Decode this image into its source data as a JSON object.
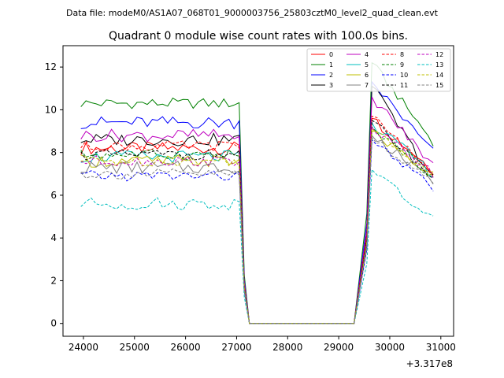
{
  "figure": {
    "suptitle": "Data file: modeM0/AS1A07_068T01_9000003756_25803cztM0_level2_quad_clean.evt",
    "title": "Quadrant 0 module wise count rates with 100.0s bins."
  },
  "chart_data": {
    "type": "line",
    "title": "Quadrant 0 module wise count rates with 100.0s bins.",
    "xlabel": "",
    "ylabel": "",
    "x_offset_label": "+3.317e8",
    "xlim": [
      23600,
      31250
    ],
    "ylim": [
      -0.6,
      13.0
    ],
    "xticks": [
      24000,
      25000,
      26000,
      27000,
      28000,
      29000,
      30000,
      31000
    ],
    "yticks": [
      0,
      2,
      4,
      6,
      8,
      10,
      12
    ],
    "grid": false,
    "legend_position": "top-right",
    "legend_ncol": 4,
    "x_segments": {
      "first": {
        "start": 23950,
        "step": 100,
        "count": 34
      },
      "gap_start": 27400,
      "gap_end": 29450,
      "second": {
        "start": 29550,
        "step": 100,
        "count": 14
      }
    },
    "series": [
      {
        "name": "0",
        "color": "#ff0000",
        "dash": "solid",
        "base": 8.2,
        "amp": 0.3,
        "peak": 9.6,
        "tail": 7.2
      },
      {
        "name": "1",
        "color": "#008000",
        "dash": "solid",
        "base": 10.3,
        "amp": 0.25,
        "peak": 12.2,
        "tail": 8.5
      },
      {
        "name": "2",
        "color": "#0000ff",
        "dash": "solid",
        "base": 9.4,
        "amp": 0.3,
        "peak": 11.3,
        "tail": 8.0
      },
      {
        "name": "3",
        "color": "#000000",
        "dash": "solid",
        "base": 8.6,
        "amp": 0.3,
        "peak": 11.1,
        "tail": 6.8
      },
      {
        "name": "4",
        "color": "#bf00bf",
        "dash": "solid",
        "base": 8.8,
        "amp": 0.3,
        "peak": 10.6,
        "tail": 7.4
      },
      {
        "name": "5",
        "color": "#00bfbf",
        "dash": "solid",
        "base": 7.8,
        "amp": 0.3,
        "peak": 9.4,
        "tail": 7.0
      },
      {
        "name": "6",
        "color": "#bfbf00",
        "dash": "solid",
        "base": 7.6,
        "amp": 0.3,
        "peak": 9.0,
        "tail": 6.9
      },
      {
        "name": "7",
        "color": "#808080",
        "dash": "solid",
        "base": 7.3,
        "amp": 0.3,
        "peak": 8.8,
        "tail": 6.7
      },
      {
        "name": "8",
        "color": "#ff0000",
        "dash": "dashed",
        "base": 8.3,
        "amp": 0.25,
        "peak": 9.7,
        "tail": 7.0
      },
      {
        "name": "9",
        "color": "#008000",
        "dash": "dashed",
        "base": 7.9,
        "amp": 0.25,
        "peak": 9.2,
        "tail": 6.9
      },
      {
        "name": "10",
        "color": "#0000ff",
        "dash": "dashed",
        "base": 6.9,
        "amp": 0.25,
        "peak": 8.6,
        "tail": 6.3
      },
      {
        "name": "11",
        "color": "#000000",
        "dash": "dashed",
        "base": 7.9,
        "amp": 0.25,
        "peak": 9.5,
        "tail": 6.8
      },
      {
        "name": "12",
        "color": "#bf00bf",
        "dash": "dashed",
        "base": 7.6,
        "amp": 0.25,
        "peak": 9.2,
        "tail": 7.0
      },
      {
        "name": "13",
        "color": "#00bfbf",
        "dash": "dashed",
        "base": 5.6,
        "amp": 0.3,
        "peak": 7.2,
        "tail": 4.8
      },
      {
        "name": "14",
        "color": "#bfbf00",
        "dash": "dashed",
        "base": 7.6,
        "amp": 0.25,
        "peak": 9.1,
        "tail": 6.9
      },
      {
        "name": "15",
        "color": "#808080",
        "dash": "dashed",
        "base": 7.0,
        "amp": 0.25,
        "peak": 8.7,
        "tail": 6.6
      }
    ]
  }
}
